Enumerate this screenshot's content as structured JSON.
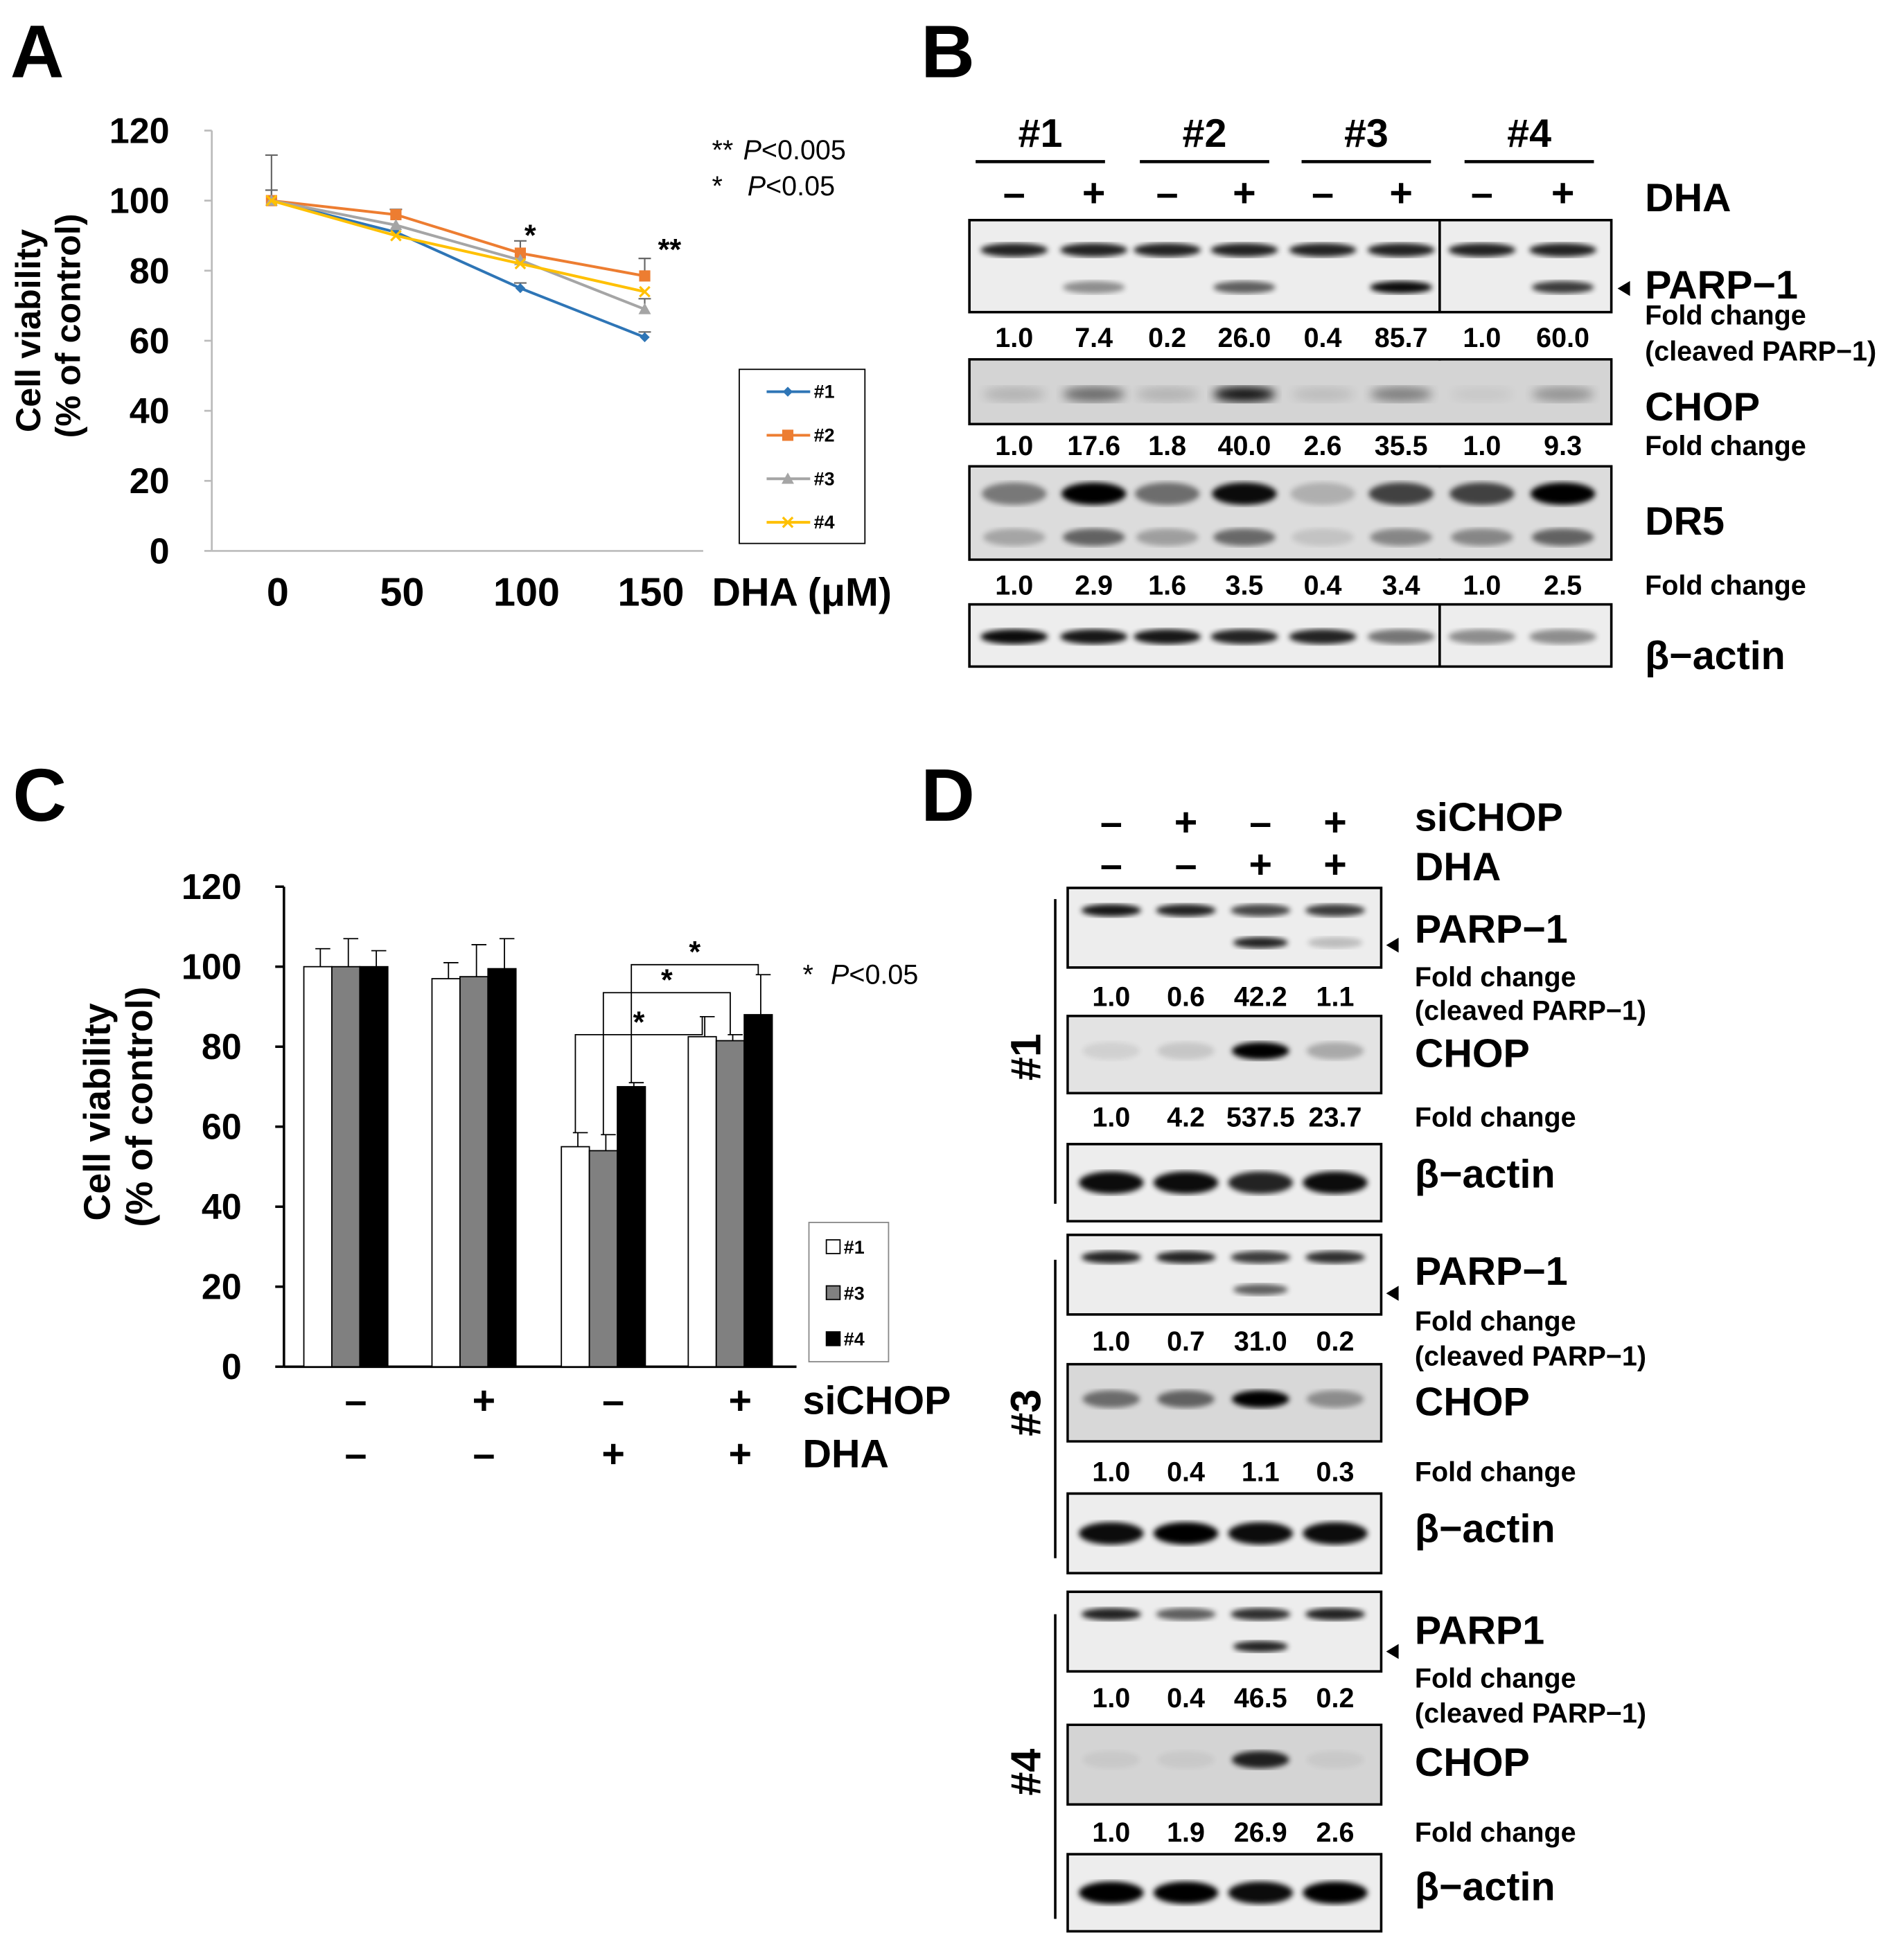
{
  "panel_letters": {
    "A": "A",
    "B": "B",
    "C": "C",
    "D": "D"
  },
  "chart_data": [
    {
      "panel": "A",
      "type": "line",
      "ylabel_line1": "Cell viability",
      "ylabel_line2": "(% of control)",
      "xlabel": "DHA (μM)",
      "x": [
        0,
        50,
        100,
        150
      ],
      "x_tick_labels": [
        "0",
        "50",
        "100",
        "150"
      ],
      "ylim": [
        0,
        120
      ],
      "y_ticks": [
        "0",
        "20",
        "40",
        "60",
        "80",
        "100",
        "120"
      ],
      "series": [
        {
          "name": "#1",
          "color": "#2e75b6",
          "marker": "diamond",
          "values": [
            100,
            91,
            75,
            61
          ],
          "errors": [
            0,
            0,
            1.5,
            1.5
          ]
        },
        {
          "name": "#2",
          "color": "#ed7d31",
          "marker": "square",
          "values": [
            100,
            96,
            85,
            78.5
          ],
          "errors": [
            3,
            1.5,
            3.5,
            5
          ]
        },
        {
          "name": "#3",
          "color": "#a5a5a5",
          "marker": "triangle",
          "values": [
            100,
            93,
            83,
            69
          ],
          "errors": [
            13,
            0,
            0,
            3
          ]
        },
        {
          "name": "#4",
          "color": "#ffc000",
          "marker": "x",
          "values": [
            100,
            90,
            82,
            74
          ],
          "errors": [
            0,
            0,
            0,
            0
          ]
        }
      ],
      "significance": [
        {
          "x": 100,
          "label": "*"
        },
        {
          "x": 150,
          "label": "**"
        }
      ],
      "stats_legend": [
        {
          "stars": "**",
          "p": "P",
          "rest": "<0.005"
        },
        {
          "stars": "*",
          "p": "P",
          "rest": "<0.05"
        }
      ]
    },
    {
      "panel": "C",
      "type": "bar",
      "ylabel_line1": "Cell viability",
      "ylabel_line2": "(% of control)",
      "ylim": [
        0,
        120
      ],
      "y_ticks": [
        "0",
        "20",
        "40",
        "60",
        "80",
        "100",
        "120"
      ],
      "row_labels": {
        "siCHOP": "siCHOP",
        "DHA": "DHA"
      },
      "conditions": [
        {
          "siCHOP": "–",
          "DHA": "–"
        },
        {
          "siCHOP": "+",
          "DHA": "–"
        },
        {
          "siCHOP": "–",
          "DHA": "+"
        },
        {
          "siCHOP": "+",
          "DHA": "+"
        }
      ],
      "series": [
        {
          "name": "#1",
          "color": "#ffffff",
          "values": [
            100,
            97,
            55,
            82.5
          ],
          "errors": [
            4.5,
            4,
            3.5,
            5
          ]
        },
        {
          "name": "#3",
          "color": "#808080",
          "values": [
            100,
            97.5,
            54,
            81.5
          ],
          "errors": [
            7,
            8,
            4,
            1.5
          ]
        },
        {
          "name": "#4",
          "color": "#000000",
          "values": [
            100,
            99.5,
            70,
            88
          ],
          "errors": [
            4,
            7.5,
            1,
            10
          ]
        }
      ],
      "significance": [
        {
          "label": "*"
        },
        {
          "label": "*"
        },
        {
          "label": "*"
        }
      ],
      "stats_legend": {
        "stars": "*",
        "p": "P",
        "rest": "<0.05"
      }
    }
  ],
  "blot_B": {
    "groups": [
      "#1",
      "#2",
      "#3",
      "#4"
    ],
    "signs": [
      "–",
      "+",
      "–",
      "+",
      "–",
      "+",
      "–",
      "+"
    ],
    "dha_label": "DHA",
    "rows": [
      {
        "protein": "PARP−1",
        "fold_label": "Fold change",
        "fold_sub": "(cleaved PARP−1)",
        "values": [
          "1.0",
          "7.4",
          "0.2",
          "26.0",
          "0.4",
          "85.7",
          "1.0",
          "60.0"
        ]
      },
      {
        "protein": "CHOP",
        "fold_label": "Fold change",
        "values": [
          "1.0",
          "17.6",
          "1.8",
          "40.0",
          "2.6",
          "35.5",
          "1.0",
          "9.3"
        ]
      },
      {
        "protein": "DR5",
        "fold_label": "Fold change",
        "values": [
          "1.0",
          "2.9",
          "1.6",
          "3.5",
          "0.4",
          "3.4",
          "1.0",
          "2.5"
        ]
      },
      {
        "protein": "β−actin"
      }
    ]
  },
  "blot_D": {
    "sichop_label": "siCHOP",
    "dha_label": "DHA",
    "sichop_signs": [
      "–",
      "+",
      "–",
      "+"
    ],
    "dha_signs": [
      "–",
      "–",
      "+",
      "+"
    ],
    "sections": [
      {
        "name": "#1",
        "rows": [
          {
            "protein": "PARP−1",
            "fold_label": "Fold change",
            "fold_sub": "(cleaved PARP−1)",
            "values": [
              "1.0",
              "0.6",
              "42.2",
              "1.1"
            ]
          },
          {
            "protein": "CHOP",
            "fold_label": "Fold change",
            "values": [
              "1.0",
              "4.2",
              "537.5",
              "23.7"
            ]
          },
          {
            "protein": "β−actin"
          }
        ]
      },
      {
        "name": "#3",
        "rows": [
          {
            "protein": "PARP−1",
            "fold_label": "Fold change",
            "fold_sub": "(cleaved PARP−1)",
            "values": [
              "1.0",
              "0.7",
              "31.0",
              "0.2"
            ]
          },
          {
            "protein": "CHOP",
            "fold_label": "Fold change",
            "values": [
              "1.0",
              "0.4",
              "1.1",
              "0.3"
            ]
          },
          {
            "protein": "β−actin"
          }
        ]
      },
      {
        "name": "#4",
        "rows": [
          {
            "protein": "PARP1",
            "fold_label": "Fold change",
            "fold_sub": "(cleaved PARP−1)",
            "values": [
              "1.0",
              "0.4",
              "46.5",
              "0.2"
            ]
          },
          {
            "protein": "CHOP",
            "fold_label": "Fold change",
            "values": [
              "1.0",
              "1.9",
              "26.9",
              "2.6"
            ]
          },
          {
            "protein": "β−actin"
          }
        ]
      }
    ]
  }
}
